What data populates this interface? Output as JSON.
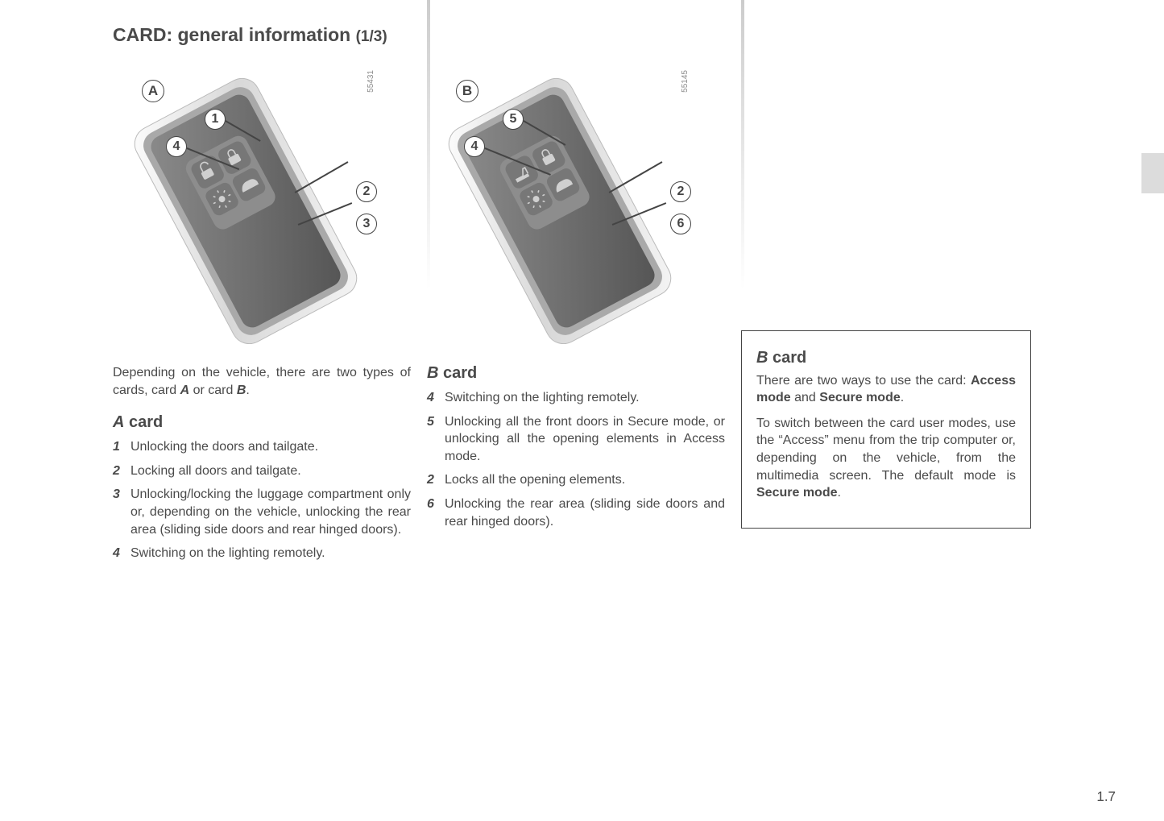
{
  "title_main": "CARD: general information ",
  "title_sub": "(1/3)",
  "pageno": "1.7",
  "figA": {
    "label": "A",
    "imgno": "55431",
    "callouts": {
      "c1": "1",
      "c2": "2",
      "c3": "3",
      "c4": "4"
    }
  },
  "figB": {
    "label": "B",
    "imgno": "55145",
    "callouts": {
      "c4": "4",
      "c5": "5",
      "c2": "2",
      "c6": "6"
    }
  },
  "col1": {
    "intro_a": "Depending on the vehicle, there are two types of cards, card ",
    "intro_boldA": "A",
    "intro_mid": " or card ",
    "intro_boldB": "B",
    "intro_end": ".",
    "head_letter": "A",
    "head_word": " card",
    "items": [
      {
        "n": "1",
        "t": "Unlocking the doors and tailgate."
      },
      {
        "n": "2",
        "t": "Locking all doors and tailgate."
      },
      {
        "n": "3",
        "t": "Unlocking/locking the luggage compartment only or, depending on the vehicle, unlocking the rear area (sliding side doors and rear hinged doors)."
      },
      {
        "n": "4",
        "t": "Switching on the lighting remotely."
      }
    ]
  },
  "col2": {
    "head_letter": "B",
    "head_word": " card",
    "items": [
      {
        "n": "4",
        "t": "Switching on the lighting remotely."
      },
      {
        "n": "5",
        "t": "Unlocking all the front doors in Secure mode, or unlocking all the opening elements in Access mode."
      },
      {
        "n": "2",
        "t": "Locks all the opening elements."
      },
      {
        "n": "6",
        "t": "Unlocking the rear area (sliding side doors and rear hinged doors)."
      }
    ]
  },
  "infobox": {
    "head_letter": "B",
    "head_word": " card",
    "p1_a": "There are two ways to use the card: ",
    "p1_b1": "Access mode",
    "p1_mid": " and ",
    "p1_b2": "Secure mode",
    "p1_end": ".",
    "p2_a": "To switch between the card user modes, use the “Access” menu from the trip computer or, depending on the vehicle, from the multimedia screen. The default mode is ",
    "p2_b": "Secure mode",
    "p2_end": "."
  }
}
